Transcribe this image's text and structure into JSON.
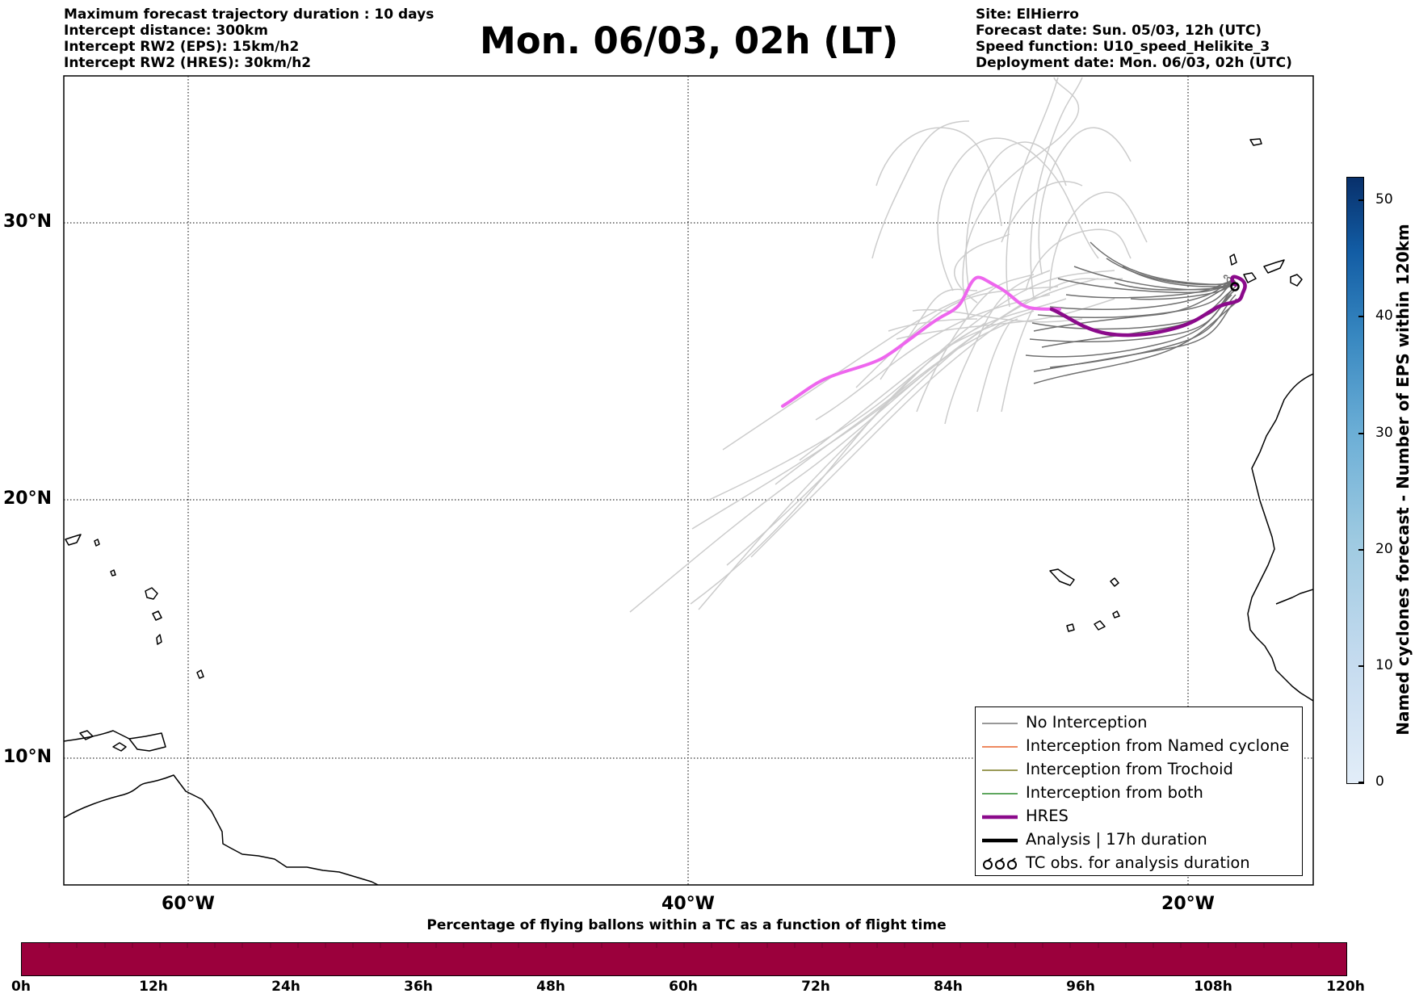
{
  "header": {
    "left_lines": [
      "Maximum forecast trajectory duration : 10 days",
      "Intercept distance: 300km",
      "Intercept RW2 (EPS):  15km/h2",
      "Intercept RW2 (HRES): 30km/h2"
    ],
    "title": "Mon. 06/03, 02h (LT)",
    "right_lines": [
      "Site: ElHierro",
      "Forecast date: Sun. 05/03, 12h (UTC)",
      "Speed function: U10_speed_Helikite_3",
      "Deployment date: Mon. 06/03, 02h (UTC)"
    ]
  },
  "map": {
    "lon_range": [
      -65,
      15
    ],
    "lat_range": [
      5,
      34.5
    ],
    "lat_labels": [
      "30°N",
      "20°N",
      "10°N"
    ],
    "lon_labels": [
      "60°W",
      "40°W",
      "20°W"
    ],
    "colors": {
      "eps_light": "#cccccc",
      "eps_no_interception": "#707070",
      "hres_early": "#ee66ee",
      "hres": "#8b0a8b",
      "coast": "#000000"
    }
  },
  "legend": {
    "items": [
      {
        "label": "No Interception",
        "color": "#777777",
        "style": "thin"
      },
      {
        "label": "Interception from Named cyclone",
        "color": "#e8622b",
        "style": "thin"
      },
      {
        "label": "Interception from Trochoid",
        "color": "#7a7a20",
        "style": "thin"
      },
      {
        "label": "Interception from both",
        "color": "#2a8a2a",
        "style": "thin"
      },
      {
        "label": "HRES",
        "color": "#8b0a8b",
        "style": "thick"
      },
      {
        "label": "Analysis | 17h duration",
        "color": "#000000",
        "style": "thick"
      },
      {
        "label": "TC obs. for analysis duration",
        "color": "#000000",
        "style": "markers"
      }
    ]
  },
  "colorbar_right": {
    "label": "Named cyclones forecast - Number of EPS within 120km",
    "ticks": [
      "0",
      "10",
      "20",
      "30",
      "40",
      "50"
    ],
    "max": 52
  },
  "bottom": {
    "title": "Percentage of flying ballons within a TC as a function of flight time",
    "ticks": [
      "0h",
      "12h",
      "24h",
      "36h",
      "48h",
      "60h",
      "72h",
      "84h",
      "96h",
      "108h",
      "120h"
    ],
    "bar_color": "#9b003c"
  },
  "chart_data": {
    "type": "line",
    "xlabel": "",
    "ylabel": "",
    "xlim": [
      -65,
      15
    ],
    "ylim": [
      5,
      34.5
    ],
    "series": [
      {
        "name": "HRES",
        "x": [
          -30.4,
          -29.8,
          -28.5,
          -27.5,
          -26.9,
          -26.4,
          -25.7,
          -25.3,
          -24.8,
          -24.0,
          -22.3,
          -20.5,
          -19.5,
          -18.5,
          -17.9,
          -17.7,
          -17.6,
          -17.7,
          -17.9
        ],
        "y": [
          23.5,
          23.8,
          24.3,
          24.9,
          25.6,
          26.3,
          27.1,
          27.2,
          27.0,
          26.6,
          25.9,
          25.8,
          26.1,
          26.6,
          26.9,
          27.3,
          27.8,
          28.0,
          27.7
        ]
      }
    ]
  }
}
